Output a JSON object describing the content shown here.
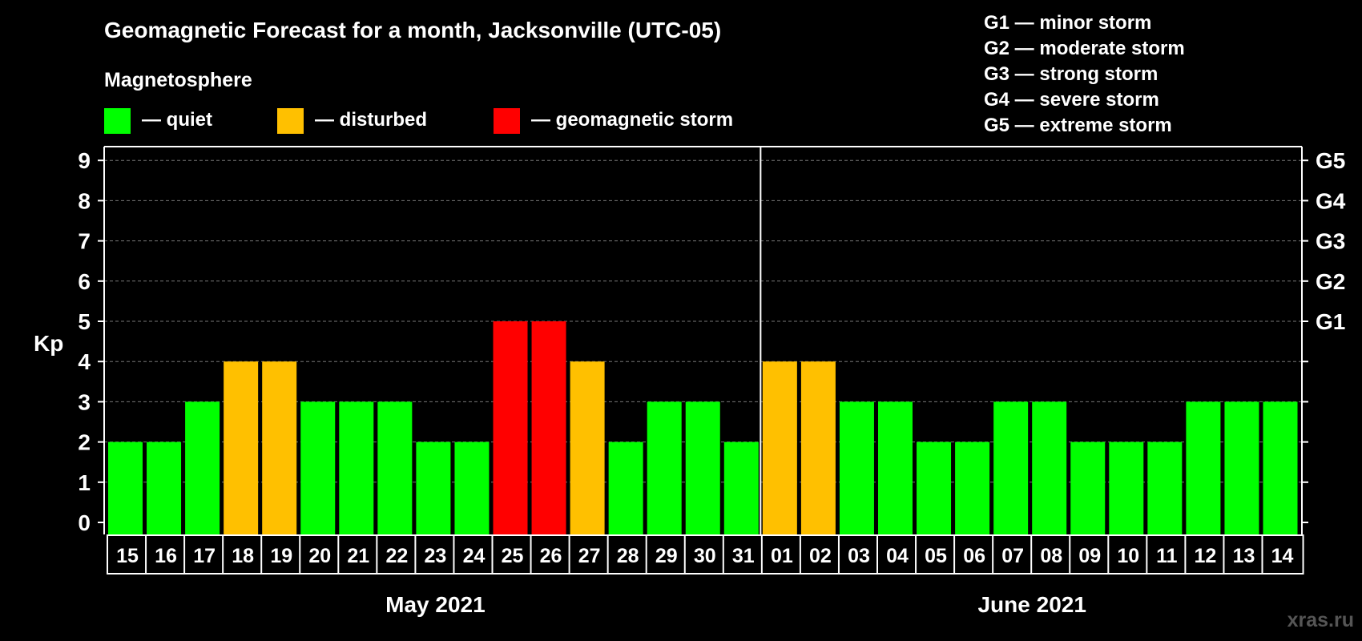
{
  "chart_data": {
    "type": "bar",
    "title": "Geomagnetic Forecast for a month, Jacksonville (UTC-05)",
    "ylabel": "Kp",
    "ylim": [
      0,
      9
    ],
    "yticks": [
      "0",
      "1",
      "2",
      "3",
      "4",
      "5",
      "6",
      "7",
      "8",
      "9"
    ],
    "right_ticks": [
      {
        "kp": 5,
        "label": "G1"
      },
      {
        "kp": 6,
        "label": "G2"
      },
      {
        "kp": 7,
        "label": "G3"
      },
      {
        "kp": 8,
        "label": "G4"
      },
      {
        "kp": 9,
        "label": "G5"
      }
    ],
    "categories": [
      "15",
      "16",
      "17",
      "18",
      "19",
      "20",
      "21",
      "22",
      "23",
      "24",
      "25",
      "26",
      "27",
      "28",
      "29",
      "30",
      "31",
      "01",
      "02",
      "03",
      "04",
      "05",
      "06",
      "07",
      "08",
      "09",
      "10",
      "11",
      "12",
      "13",
      "14"
    ],
    "values": [
      2,
      2,
      3,
      4,
      4,
      3,
      3,
      3,
      2,
      2,
      5,
      5,
      4,
      2,
      3,
      3,
      2,
      4,
      4,
      3,
      3,
      2,
      2,
      3,
      3,
      2,
      2,
      2,
      3,
      3,
      3
    ],
    "months": [
      {
        "label": "May 2021",
        "start": 0,
        "end": 16
      },
      {
        "label": "June 2021",
        "start": 17,
        "end": 30
      }
    ],
    "legend_title": "Magnetosphere",
    "legend": [
      {
        "label": "— quiet",
        "color": "#00ff00"
      },
      {
        "label": "— disturbed",
        "color": "#ffc000"
      },
      {
        "label": "— geomagnetic storm",
        "color": "#ff0000"
      }
    ],
    "storm_scale": [
      "G1 — minor storm",
      "G2 — moderate storm",
      "G3 — strong storm",
      "G4 — severe storm",
      "G5 — extreme storm"
    ],
    "grid": true
  },
  "watermark": "xras.ru"
}
